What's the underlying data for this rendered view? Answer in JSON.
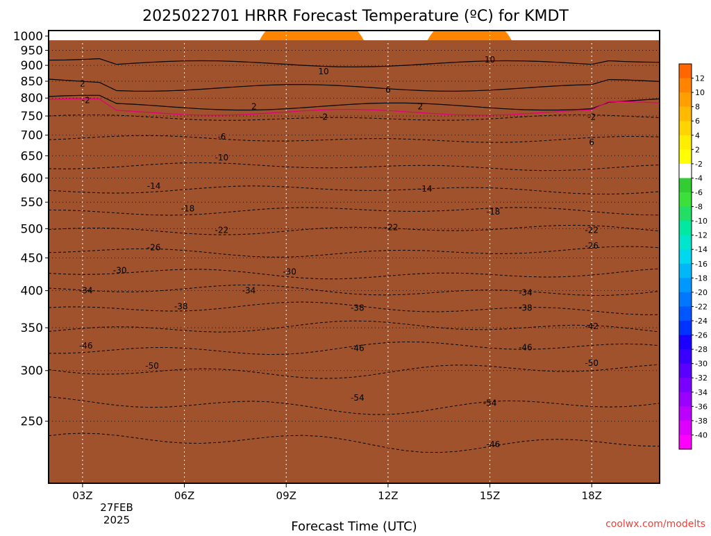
{
  "chart_data": {
    "type": "time-height contour",
    "title": "2025022701 HRRR Forecast Temperature (ºC) for KMDT",
    "xlabel": "Forecast Time (UTC)",
    "ylabel": "",
    "x_tick_labels": [
      "03Z",
      "06Z",
      "09Z",
      "12Z",
      "15Z",
      "18Z"
    ],
    "x_date_label": [
      "27FEB",
      "2025"
    ],
    "y_tick_labels": [
      "250",
      "300",
      "350",
      "400",
      "450",
      "500",
      "550",
      "600",
      "650",
      "700",
      "750",
      "800",
      "850",
      "900",
      "950",
      "1000"
    ],
    "y_scale": "log pressure",
    "ylim": [
      1020,
      200
    ],
    "xlim_hours": [
      1,
      19
    ],
    "grid": true,
    "colorbar": {
      "placement": "right",
      "levels": [
        12,
        10,
        8,
        6,
        4,
        2,
        -2,
        -4,
        -6,
        -8,
        -10,
        -12,
        -14,
        -16,
        -18,
        -20,
        -22,
        -24,
        -26,
        -28,
        -30,
        -32,
        -34,
        -36,
        -38,
        -40
      ],
      "colors": [
        "#ff6600",
        "#ff8400",
        "#ff9f00",
        "#ffb900",
        "#ffd400",
        "#ffee00",
        "#ffff00",
        "#ffffff",
        "#32cd32",
        "#3be03b",
        "#22dd66",
        "#00e8a2",
        "#00e6cd",
        "#00d8f0",
        "#00b8f6",
        "#0097ff",
        "#0077ff",
        "#0057ff",
        "#0033ff",
        "#1c00ff",
        "#3a00ff",
        "#5a00ff",
        "#7a00ff",
        "#9a00ff",
        "#bb00ff",
        "#dd00ff",
        "#ff00ff"
      ]
    },
    "contour_labels": [
      {
        "text": "-46",
        "hour": 14.1,
        "p": 230
      },
      {
        "text": "-54",
        "hour": 10.1,
        "p": 272
      },
      {
        "text": "-54",
        "hour": 14.0,
        "p": 267
      },
      {
        "text": "-50",
        "hour": 4.05,
        "p": 305
      },
      {
        "text": "-50",
        "hour": 17.0,
        "p": 308
      },
      {
        "text": "-46",
        "hour": 2.1,
        "p": 328
      },
      {
        "text": "-46",
        "hour": 10.1,
        "p": 325
      },
      {
        "text": "-46",
        "hour": 15.05,
        "p": 326
      },
      {
        "text": "-42",
        "hour": 17.0,
        "p": 352
      },
      {
        "text": "-38",
        "hour": 4.9,
        "p": 378
      },
      {
        "text": "-38",
        "hour": 10.1,
        "p": 376
      },
      {
        "text": "-38",
        "hour": 15.05,
        "p": 376
      },
      {
        "text": "-34",
        "hour": 2.1,
        "p": 400
      },
      {
        "text": "-34",
        "hour": 6.9,
        "p": 400
      },
      {
        "text": "-34",
        "hour": 15.05,
        "p": 397
      },
      {
        "text": "-30",
        "hour": 3.1,
        "p": 430
      },
      {
        "text": "-30",
        "hour": 8.1,
        "p": 428
      },
      {
        "text": "-26",
        "hour": 4.1,
        "p": 467
      },
      {
        "text": "-26",
        "hour": 17.0,
        "p": 470
      },
      {
        "text": "-22",
        "hour": 6.1,
        "p": 497
      },
      {
        "text": "-22",
        "hour": 11.1,
        "p": 502
      },
      {
        "text": "-22",
        "hour": 17.0,
        "p": 497
      },
      {
        "text": "-18",
        "hour": 5.1,
        "p": 537
      },
      {
        "text": "-18",
        "hour": 14.1,
        "p": 531
      },
      {
        "text": "-14",
        "hour": 4.1,
        "p": 583
      },
      {
        "text": "-14",
        "hour": 12.1,
        "p": 577
      },
      {
        "text": "-10",
        "hour": 6.1,
        "p": 646
      },
      {
        "text": "-6",
        "hour": 6.1,
        "p": 696
      },
      {
        "text": "6",
        "hour": 17.0,
        "p": 682
      },
      {
        "text": "-2",
        "hour": 9.1,
        "p": 747
      },
      {
        "text": "-2",
        "hour": 17.0,
        "p": 747
      },
      {
        "text": "-2",
        "hour": 2.1,
        "p": 793
      },
      {
        "text": "2",
        "hour": 7.05,
        "p": 776
      },
      {
        "text": "2",
        "hour": 11.95,
        "p": 776
      },
      {
        "text": "2",
        "hour": 2.0,
        "p": 843
      },
      {
        "text": "6",
        "hour": 11.0,
        "p": 824
      },
      {
        "text": "10",
        "hour": 9.1,
        "p": 880
      },
      {
        "text": "10",
        "hour": 14.0,
        "p": 918
      }
    ]
  },
  "credit": "coolwx.com/modelts"
}
